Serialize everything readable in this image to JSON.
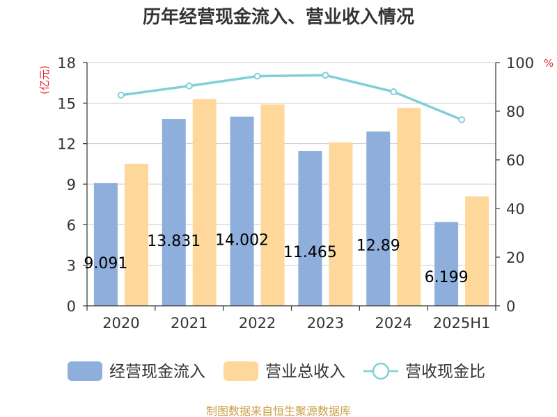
{
  "chart_data": {
    "type": "bar",
    "title": "历年经营现金流入、营业收入情况",
    "categories": [
      "2020",
      "2021",
      "2022",
      "2023",
      "2024",
      "2025H1"
    ],
    "series": [
      {
        "name": "经营现金流入",
        "type": "bar",
        "axis": "left",
        "color": "#8eaedb",
        "values": [
          9.091,
          13.831,
          14.002,
          11.465,
          12.89,
          6.199
        ],
        "labels": [
          "9.091",
          "13.831",
          "14.002",
          "11.465",
          "12.89",
          "6.199"
        ]
      },
      {
        "name": "营业总收入",
        "type": "bar",
        "axis": "left",
        "color": "#fdd89a",
        "values": [
          10.5,
          15.3,
          14.9,
          12.1,
          14.65,
          8.1
        ]
      },
      {
        "name": "营收现金比",
        "type": "line",
        "axis": "right",
        "color": "#7fd0d6",
        "values": [
          86.6,
          90.4,
          94.4,
          94.8,
          88.0,
          76.5
        ]
      }
    ],
    "y_left": {
      "unit": "(亿元)",
      "min": 0,
      "max": 18,
      "ticks": [
        0,
        3,
        6,
        9,
        12,
        15,
        18
      ]
    },
    "y_right": {
      "unit": "%",
      "min": 0,
      "max": 100,
      "ticks": [
        0,
        20,
        40,
        60,
        80,
        100
      ]
    },
    "grid": true,
    "legend_position": "bottom"
  },
  "source_note": "制图数据来自恒生聚源数据库"
}
